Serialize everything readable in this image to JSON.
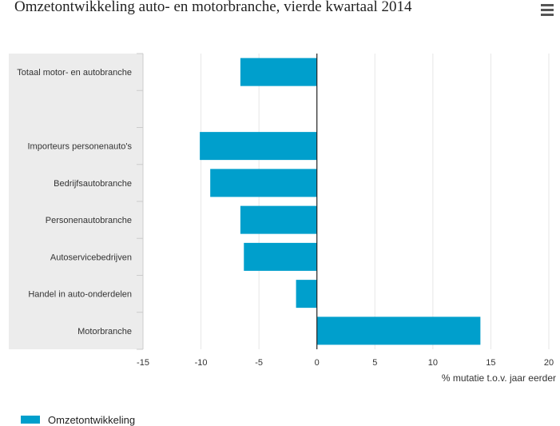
{
  "title": "Omzetontwikkeling auto- en motorbranche, vierde kwartaal 2014",
  "menu_icon": "hamburger-menu-icon",
  "colors": {
    "bar": "#009fcc",
    "label_band": "#ececec",
    "grid": "#e6e6e6",
    "axis": "#222222"
  },
  "chart_data": {
    "type": "bar",
    "orientation": "horizontal",
    "categories": [
      "Totaal motor- en autobranche",
      "",
      "Importeurs personenauto's",
      "Bedrijfsautobranche",
      "Personenautobranche",
      "Autoservicebedrijven",
      "Handel in auto-onderdelen",
      "Motorbranche"
    ],
    "series": [
      {
        "name": "Omzetontwikkeling",
        "values": [
          -6.6,
          null,
          -10.1,
          -9.2,
          -6.6,
          -6.3,
          -1.8,
          14.1
        ]
      }
    ],
    "xlabel": "% mutatie t.o.v. jaar eerder",
    "xlim": [
      -15,
      20
    ],
    "xticks": [
      -15,
      -10,
      -5,
      0,
      5,
      10,
      15,
      20
    ],
    "grid": true,
    "legend": "bottom-left"
  }
}
